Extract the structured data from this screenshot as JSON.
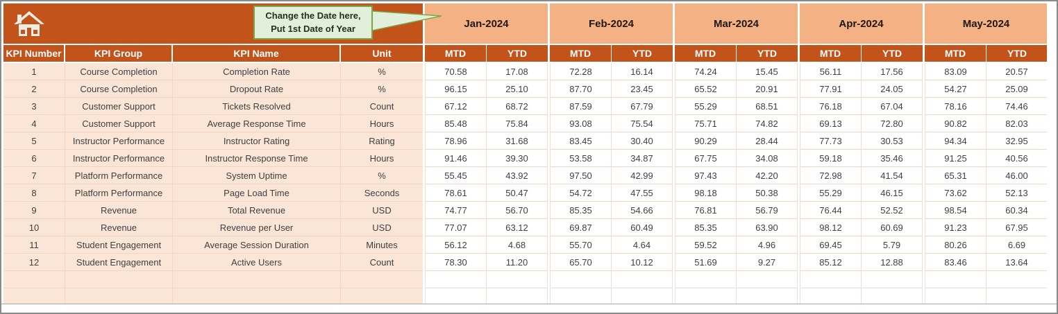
{
  "banner": {
    "callout": {
      "line1": "Change the Date here,",
      "line2": "Put 1st Date of Year"
    }
  },
  "table": {
    "left_headers": [
      "KPI Number",
      "KPI Group",
      "KPI Name",
      "Unit"
    ],
    "months": [
      "Jan-2024",
      "Feb-2024",
      "Mar-2024",
      "Apr-2024",
      "May-2024"
    ],
    "sub_headers": [
      "MTD",
      "YTD"
    ],
    "rows": [
      {
        "number": "1",
        "group": "Course Completion",
        "name": "Completion Rate",
        "unit": "%",
        "values": [
          "70.58",
          "17.08",
          "72.28",
          "16.14",
          "74.24",
          "15.45",
          "56.11",
          "17.56",
          "83.09",
          "20.57"
        ]
      },
      {
        "number": "2",
        "group": "Course Completion",
        "name": "Dropout Rate",
        "unit": "%",
        "values": [
          "96.15",
          "25.10",
          "87.70",
          "23.45",
          "65.52",
          "20.91",
          "77.91",
          "24.05",
          "54.27",
          "25.09"
        ]
      },
      {
        "number": "3",
        "group": "Customer Support",
        "name": "Tickets Resolved",
        "unit": "Count",
        "values": [
          "67.12",
          "68.72",
          "87.59",
          "67.79",
          "55.29",
          "68.51",
          "76.18",
          "67.04",
          "78.16",
          "74.46"
        ]
      },
      {
        "number": "4",
        "group": "Customer Support",
        "name": "Average Response Time",
        "unit": "Hours",
        "values": [
          "85.48",
          "75.84",
          "93.08",
          "75.54",
          "75.71",
          "74.82",
          "69.13",
          "72.80",
          "90.82",
          "82.03"
        ]
      },
      {
        "number": "5",
        "group": "Instructor Performance",
        "name": "Instructor Rating",
        "unit": "Rating",
        "values": [
          "78.96",
          "31.68",
          "83.45",
          "30.40",
          "90.29",
          "28.44",
          "77.73",
          "30.53",
          "94.34",
          "32.95"
        ]
      },
      {
        "number": "6",
        "group": "Instructor Performance",
        "name": "Instructor Response Time",
        "unit": "Hours",
        "values": [
          "91.46",
          "39.30",
          "53.58",
          "34.87",
          "67.75",
          "34.08",
          "59.18",
          "35.46",
          "91.25",
          "40.56"
        ]
      },
      {
        "number": "7",
        "group": "Platform Performance",
        "name": "System Uptime",
        "unit": "%",
        "values": [
          "55.45",
          "43.92",
          "97.50",
          "42.99",
          "97.43",
          "42.20",
          "72.98",
          "41.54",
          "65.31",
          "46.00"
        ]
      },
      {
        "number": "8",
        "group": "Platform Performance",
        "name": "Page Load Time",
        "unit": "Seconds",
        "values": [
          "78.61",
          "50.47",
          "54.72",
          "47.55",
          "98.18",
          "50.38",
          "55.29",
          "46.15",
          "73.62",
          "52.13"
        ]
      },
      {
        "number": "9",
        "group": "Revenue",
        "name": "Total Revenue",
        "unit": "USD",
        "values": [
          "74.77",
          "56.70",
          "85.35",
          "54.66",
          "76.81",
          "56.79",
          "76.44",
          "52.52",
          "98.54",
          "60.34"
        ]
      },
      {
        "number": "10",
        "group": "Revenue",
        "name": "Revenue per User",
        "unit": "USD",
        "values": [
          "77.07",
          "63.12",
          "69.87",
          "60.49",
          "85.35",
          "63.90",
          "98.12",
          "60.69",
          "91.23",
          "67.95"
        ]
      },
      {
        "number": "11",
        "group": "Student Engagement",
        "name": "Average Session Duration",
        "unit": "Minutes",
        "values": [
          "56.12",
          "4.68",
          "55.70",
          "4.64",
          "59.52",
          "4.96",
          "69.45",
          "5.79",
          "80.26",
          "6.69"
        ]
      },
      {
        "number": "12",
        "group": "Student Engagement",
        "name": "Active Users",
        "unit": "Count",
        "values": [
          "78.30",
          "11.20",
          "65.70",
          "10.12",
          "51.69",
          "9.27",
          "85.12",
          "12.88",
          "83.46",
          "13.64"
        ]
      }
    ],
    "empty_row_count": 2
  },
  "icons": {
    "home": "home-icon"
  },
  "colors": {
    "dark_orange": "#C2531A",
    "salmon": "#F4B183",
    "light_peach": "#FBE5D6",
    "callout_fill": "#E2EFDA",
    "callout_border": "#7CA64A",
    "grid_line": "#F3D5C3",
    "data_text": "#3F3F3F",
    "header_text": "#FFFFFF"
  }
}
